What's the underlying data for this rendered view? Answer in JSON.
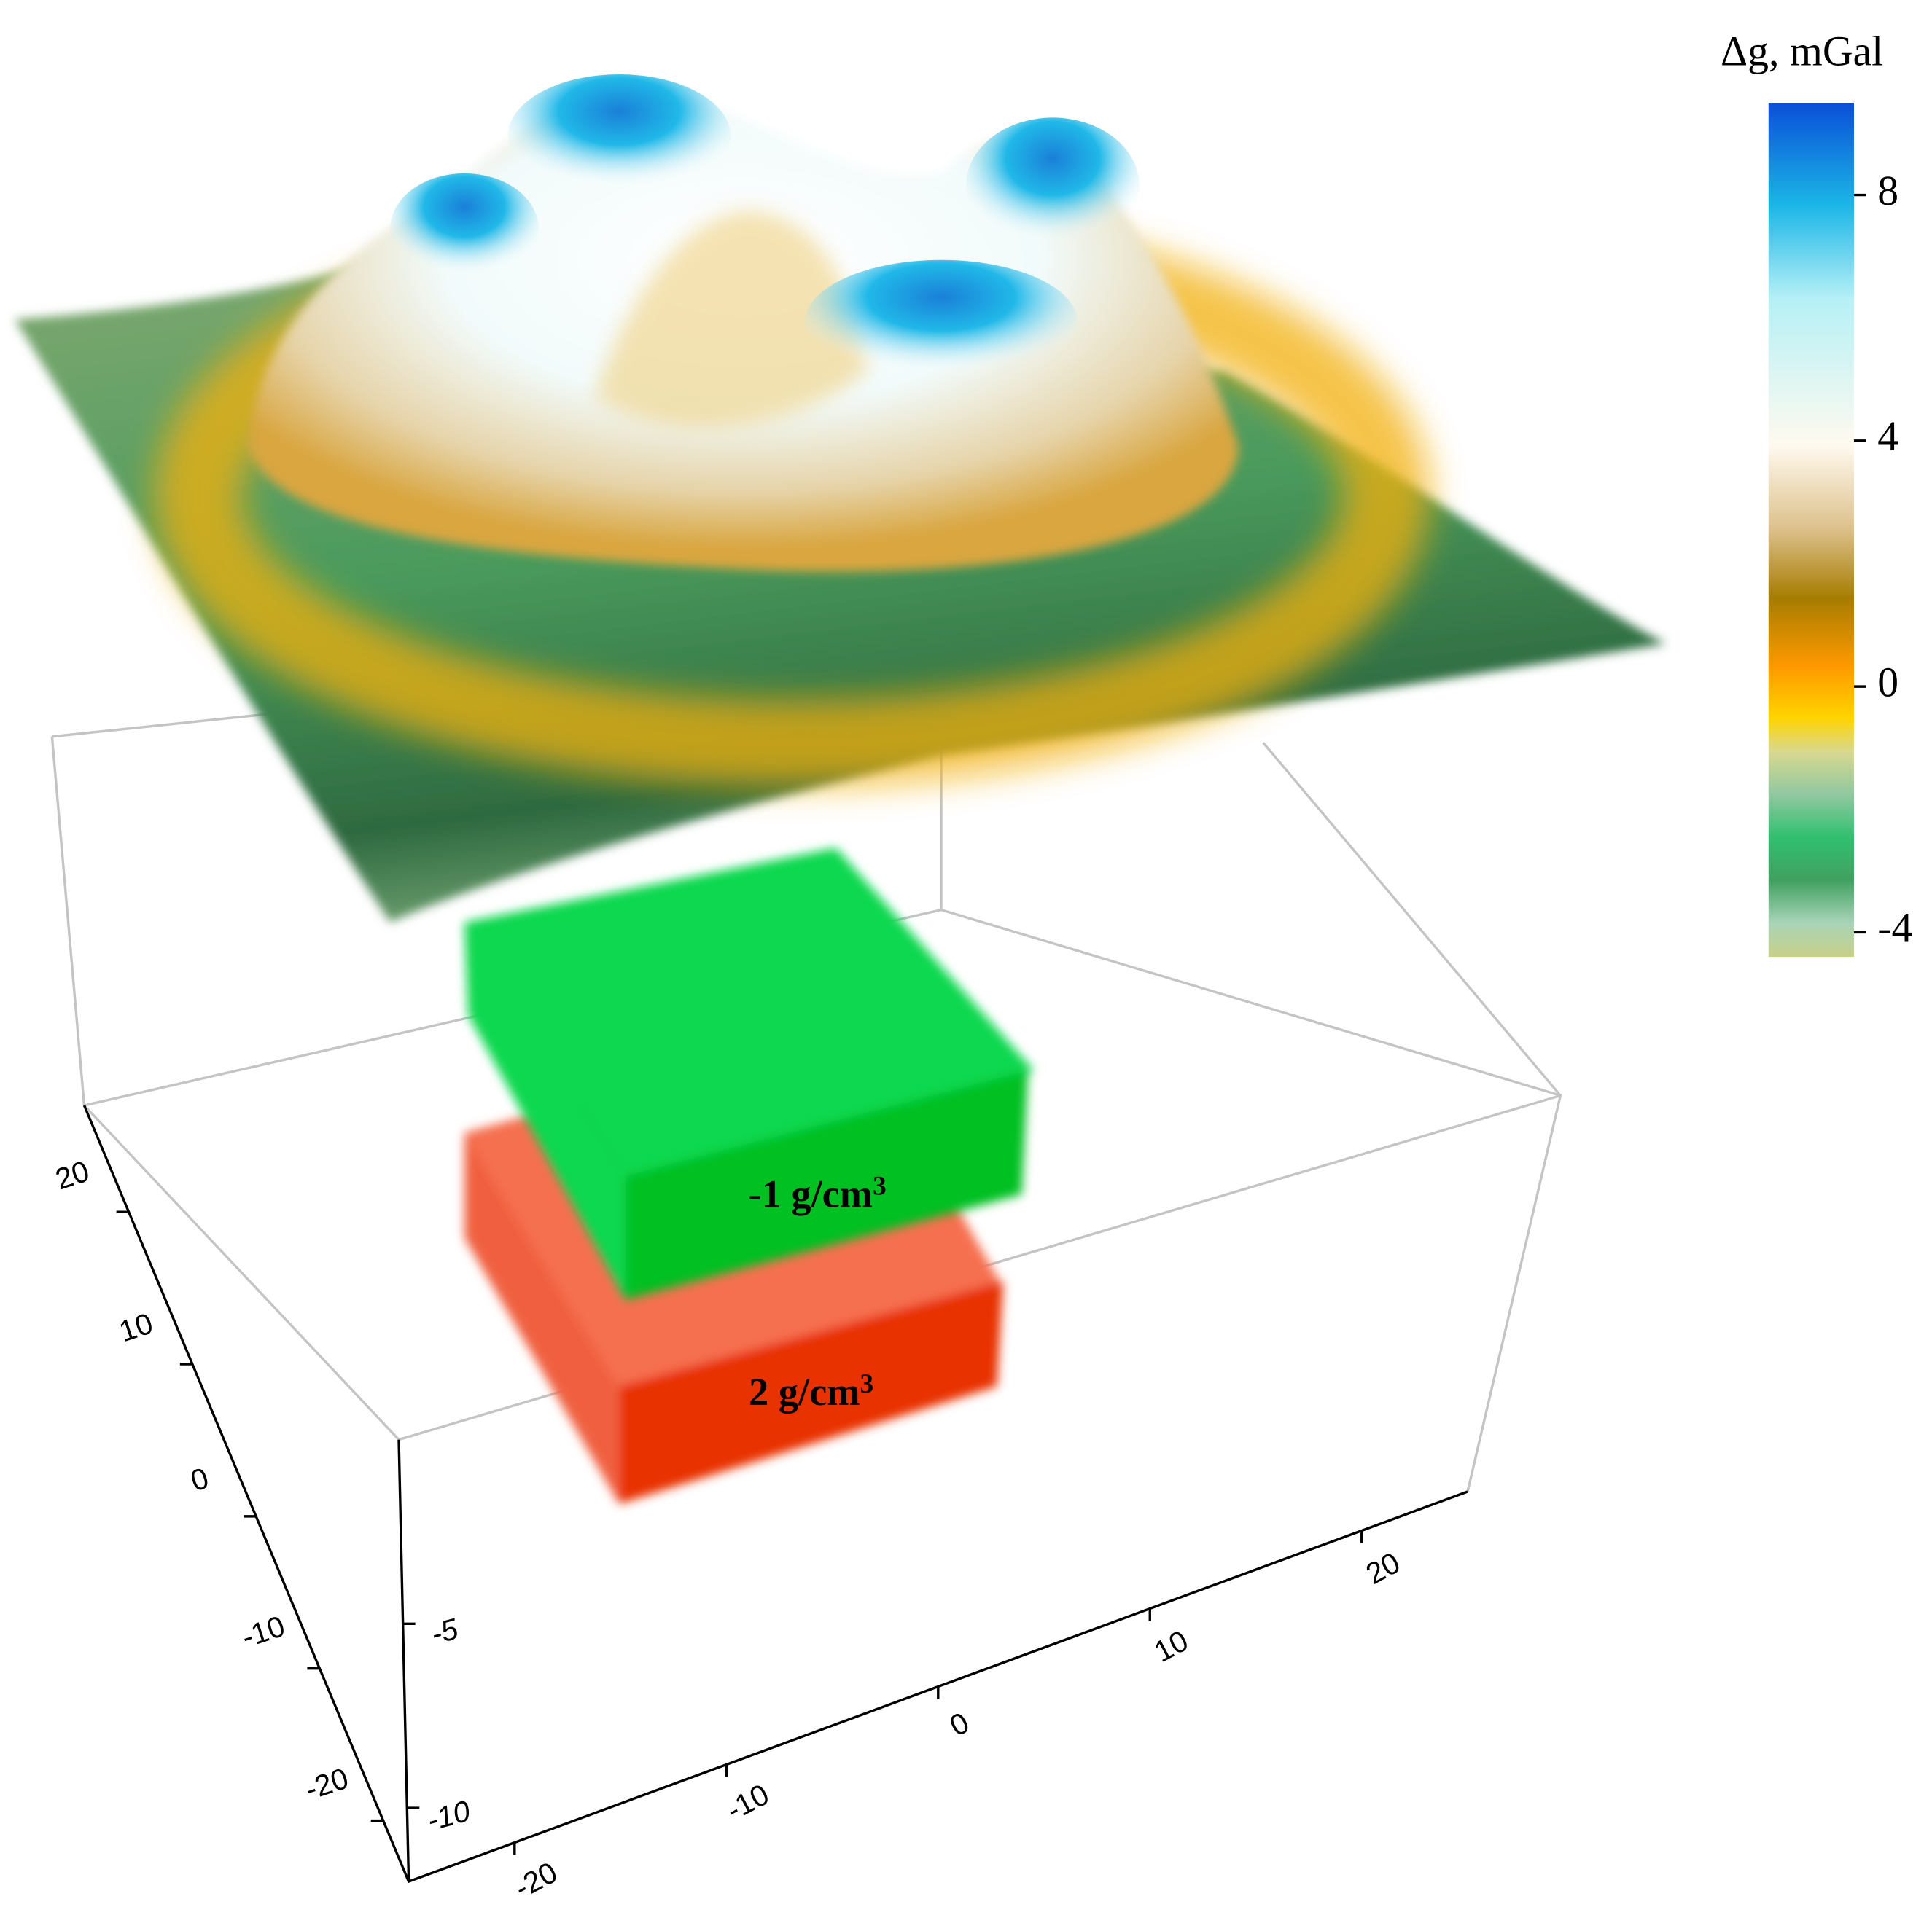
{
  "colorbar": {
    "title": "Δg, mGal",
    "lim": [
      -4.4,
      9.5
    ],
    "ticks": [
      -4,
      0,
      4,
      8
    ]
  },
  "axes": {
    "x": {
      "lim": [
        -25,
        25
      ],
      "ticks": [
        -20,
        -10,
        0,
        10,
        20
      ]
    },
    "y": {
      "lim": [
        -24,
        27
      ],
      "ticks": [
        -20,
        -10,
        0,
        10,
        20
      ]
    },
    "z": {
      "lim": [
        -12,
        0
      ],
      "ticks": [
        -10,
        -5
      ]
    }
  },
  "bodies": [
    {
      "label": "-1 g/cm",
      "exponent": "3"
    },
    {
      "label": "2 g/cm",
      "exponent": "3"
    }
  ]
}
